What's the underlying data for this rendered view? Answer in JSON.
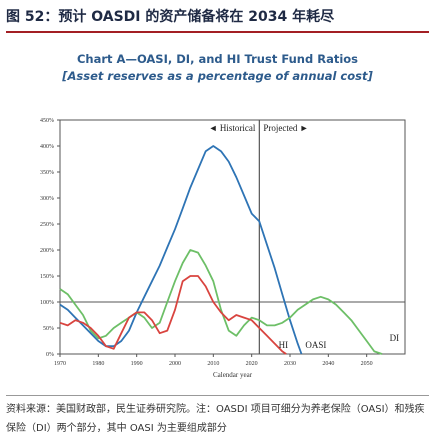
{
  "figure_title": "图 52：预计 OASDI 的资产储备将在 2034 年耗尽",
  "chart_data": {
    "type": "line",
    "title": "Chart A—OASI, DI, and HI Trust Fund Ratios",
    "subtitle": "[Asset reserves as a percentage of annual cost]",
    "xlabel": "Calendar year",
    "ylabel": "",
    "xlim": [
      1970,
      2060
    ],
    "ylim": [
      0,
      450
    ],
    "x_ticks": [
      1970,
      1980,
      1990,
      2000,
      2010,
      2020,
      2030,
      2040,
      2050
    ],
    "y_ticks": [
      0,
      50,
      100,
      150,
      200,
      250,
      300,
      350,
      400,
      450
    ],
    "y_tick_labels": [
      "0%",
      "50%",
      "100%",
      "150%",
      "200%",
      "250%",
      "300%",
      "350%",
      "400%",
      "450%"
    ],
    "divider_year": 2022,
    "historical_label": "◄ Historical",
    "projected_label": "Projected ►",
    "reference_line": 100,
    "series": [
      {
        "name": "OASI",
        "color": "#2e74b5",
        "x": [
          1970,
          1972,
          1974,
          1976,
          1978,
          1980,
          1982,
          1984,
          1986,
          1988,
          1990,
          1992,
          1994,
          1996,
          1998,
          2000,
          2002,
          2004,
          2006,
          2008,
          2010,
          2012,
          2014,
          2016,
          2018,
          2020,
          2022,
          2024,
          2026,
          2028,
          2030,
          2032,
          2033
        ],
        "values": [
          95,
          85,
          70,
          55,
          40,
          25,
          15,
          15,
          25,
          45,
          80,
          110,
          140,
          170,
          205,
          240,
          280,
          320,
          355,
          390,
          400,
          390,
          370,
          340,
          305,
          270,
          255,
          210,
          165,
          115,
          65,
          20,
          0
        ]
      },
      {
        "name": "DI",
        "color": "#6dbf67",
        "x": [
          1970,
          1972,
          1974,
          1976,
          1978,
          1980,
          1982,
          1984,
          1986,
          1988,
          1990,
          1992,
          1994,
          1996,
          1998,
          2000,
          2002,
          2004,
          2006,
          2008,
          2010,
          2012,
          2014,
          2016,
          2018,
          2020,
          2022,
          2024,
          2026,
          2028,
          2030,
          2032,
          2034,
          2036,
          2038,
          2040,
          2042,
          2044,
          2046,
          2048,
          2050,
          2052,
          2054
        ],
        "values": [
          125,
          115,
          95,
          75,
          45,
          30,
          35,
          50,
          60,
          70,
          80,
          70,
          50,
          60,
          100,
          140,
          175,
          200,
          195,
          170,
          140,
          85,
          45,
          35,
          55,
          70,
          65,
          55,
          55,
          60,
          70,
          85,
          95,
          105,
          110,
          105,
          95,
          80,
          65,
          45,
          25,
          5,
          0
        ]
      },
      {
        "name": "HI",
        "color": "#d9443f",
        "x": [
          1970,
          1972,
          1974,
          1976,
          1978,
          1980,
          1982,
          1984,
          1986,
          1988,
          1990,
          1992,
          1994,
          1996,
          1998,
          2000,
          2002,
          2004,
          2006,
          2008,
          2010,
          2012,
          2014,
          2016,
          2018,
          2020,
          2022,
          2024,
          2026,
          2028,
          2029
        ],
        "values": [
          60,
          55,
          65,
          60,
          50,
          35,
          15,
          10,
          40,
          70,
          80,
          80,
          65,
          40,
          45,
          85,
          140,
          150,
          150,
          130,
          100,
          80,
          65,
          75,
          70,
          65,
          50,
          35,
          20,
          5,
          0
        ]
      }
    ]
  },
  "source_note": "资料来源：美国财政部，民生证券研究院。注：OASDI 项目可细分为养老保险（OASI）和残疾保险（DI）两个部分，其中 OASI 为主要组成部分"
}
